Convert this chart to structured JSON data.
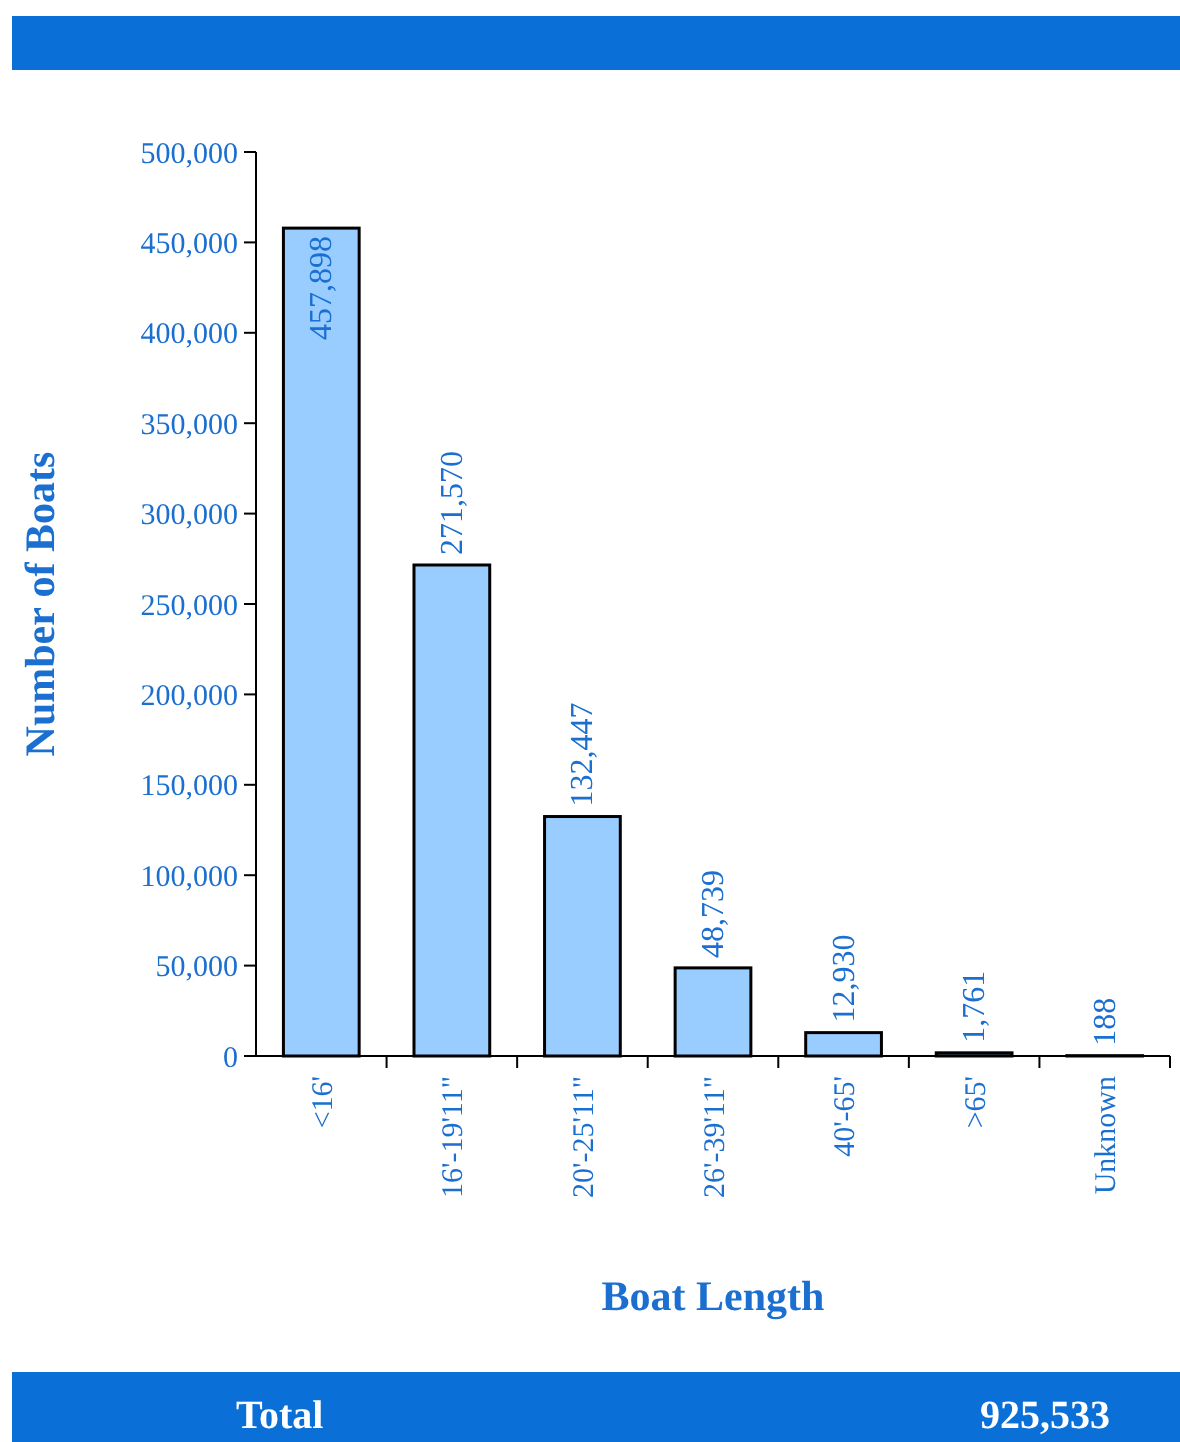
{
  "chart_data": {
    "type": "bar",
    "xlabel": "Boat Length",
    "ylabel": "Number of Boats",
    "categories": [
      "<16'",
      "16'-19'11\"",
      "20'-25'11\"",
      "26'-39'11\"",
      "40'-65'",
      ">65'",
      "Unknown"
    ],
    "values": [
      457898,
      271570,
      132447,
      48739,
      12930,
      1761,
      188
    ],
    "color": "#99ccff",
    "ylim": [
      0,
      500000
    ],
    "yticks": [
      {
        "value": 0,
        "label": "0"
      },
      {
        "value": 50000,
        "label": "50,000"
      },
      {
        "value": 100000,
        "label": "100,000"
      },
      {
        "value": 150000,
        "label": "150,000"
      },
      {
        "value": 200000,
        "label": "200,000"
      },
      {
        "value": 250000,
        "label": "250,000"
      },
      {
        "value": 300000,
        "label": "300,000"
      },
      {
        "value": 350000,
        "label": "350,000"
      },
      {
        "value": 400000,
        "label": "400,000"
      },
      {
        "value": 450000,
        "label": "450,000"
      },
      {
        "value": 500000,
        "label": "500,000"
      }
    ],
    "value_labels": [
      "457,898",
      "271,570",
      "132,447",
      "48,739",
      "12,930",
      "1,761",
      "188"
    ],
    "grid": false,
    "annotations": [
      "Total",
      "925,533"
    ]
  }
}
